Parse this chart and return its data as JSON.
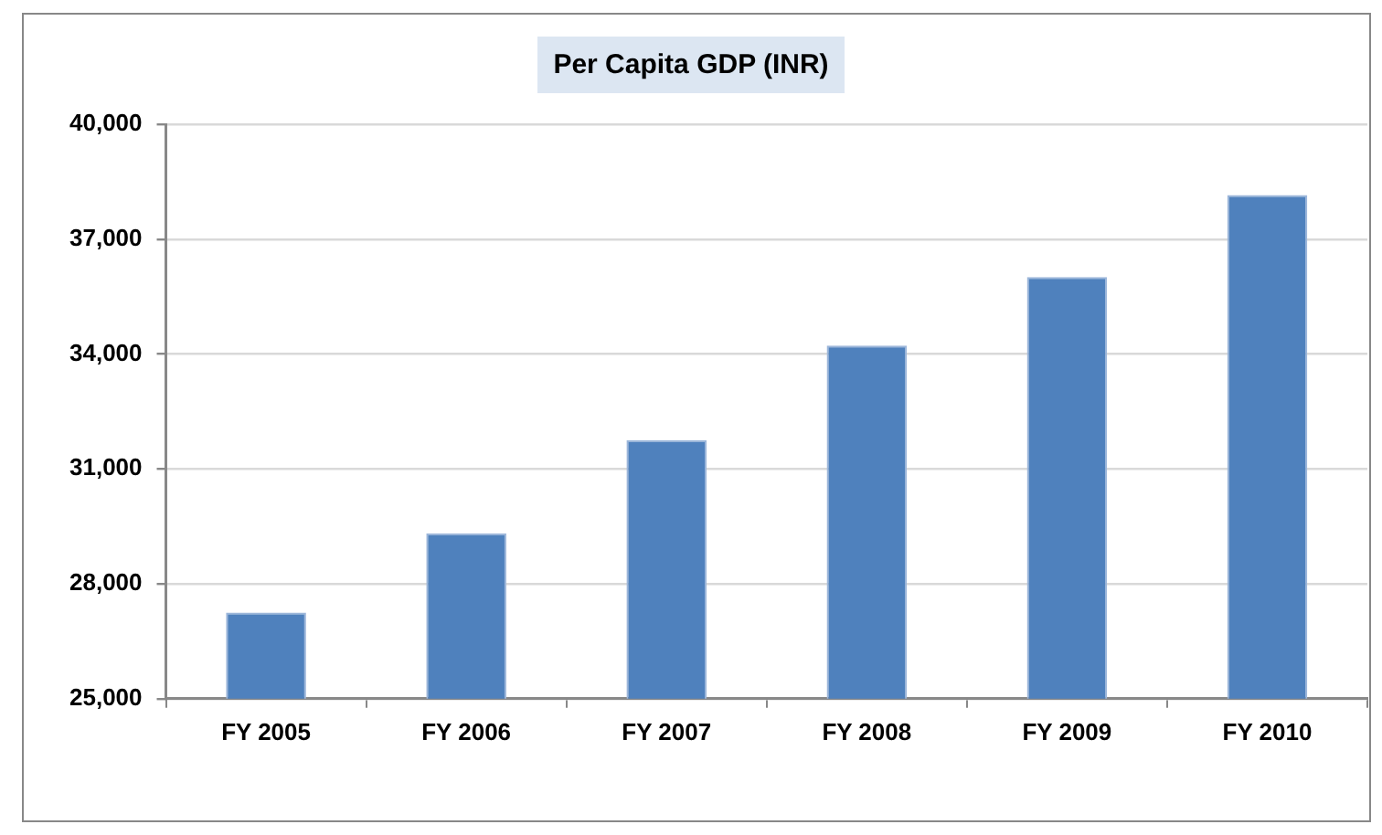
{
  "chart_data": {
    "type": "bar",
    "title": "Per Capita GDP (INR)",
    "categories": [
      "FY 2005",
      "FY 2006",
      "FY 2007",
      "FY 2008",
      "FY 2009",
      "FY 2010"
    ],
    "values": [
      27250,
      29320,
      31750,
      34220,
      36010,
      38150
    ],
    "color": "#4f81bd",
    "ylim": [
      25000,
      40000
    ],
    "yticks": [
      {
        "value": 25000,
        "label": "25,000"
      },
      {
        "value": 28000,
        "label": "28,000"
      },
      {
        "value": 31000,
        "label": "31,000"
      },
      {
        "value": 34000,
        "label": "34,000"
      },
      {
        "value": 37000,
        "label": "37,000"
      },
      {
        "value": 40000,
        "label": "40,000"
      }
    ],
    "grid": "y",
    "legend": false
  }
}
